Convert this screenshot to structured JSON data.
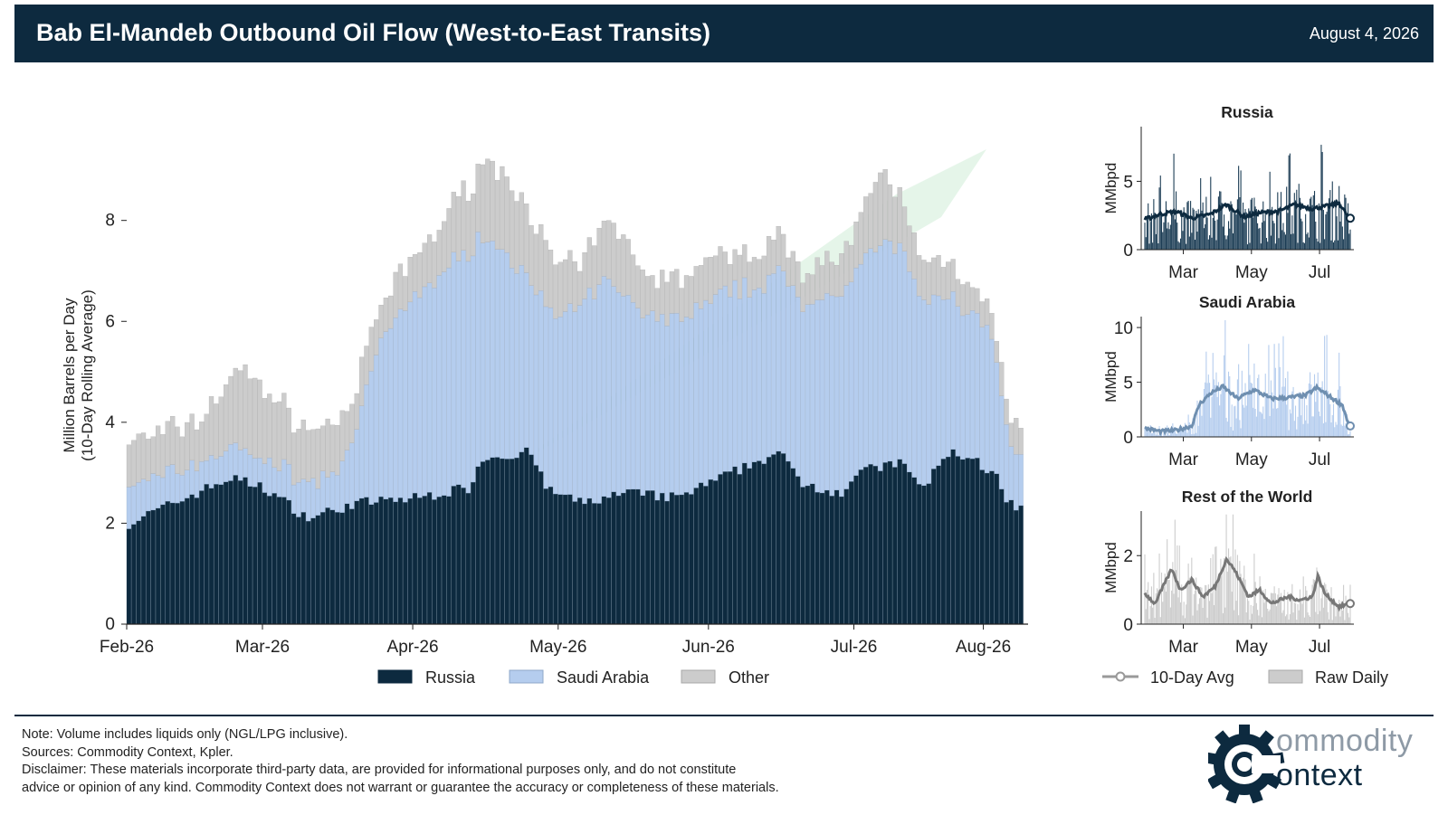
{
  "header": {
    "title": "Bab El-Mandeb Outbound Oil Flow (West-to-East Transits)",
    "date": "August 4, 2026"
  },
  "colors": {
    "russia": "#0d2a3f",
    "saudi": "#b5cdee",
    "other": "#cccccc",
    "header_bg": "#0d2a3f"
  },
  "chart_data": [
    {
      "type": "bar",
      "stacked": true,
      "title": "",
      "ylabel": "Million Barrels per Day\n(10-Day Rolling Average)",
      "xlabel": "",
      "ylim": [
        0,
        9.5
      ],
      "yticks": [
        0,
        2,
        4,
        6,
        8
      ],
      "xtick_labels": [
        "Feb-26",
        "Mar-26",
        "Apr-26",
        "May-26",
        "Jun-26",
        "Jul-26",
        "Aug-26"
      ],
      "legend": {
        "placement": "bottom-center",
        "entries": [
          "Russia",
          "Saudi Arabia",
          "Other"
        ]
      },
      "x_start": "2026-02-01",
      "x_end": "2026-08-04",
      "series_keypoints": {
        "Russia": [
          [
            "2026-02-01",
            2.0
          ],
          [
            "2026-02-15",
            2.6
          ],
          [
            "2026-02-22",
            2.9
          ],
          [
            "2026-03-01",
            2.7
          ],
          [
            "2026-03-10",
            2.1
          ],
          [
            "2026-03-20",
            2.4
          ],
          [
            "2026-04-01",
            2.5
          ],
          [
            "2026-04-12",
            2.7
          ],
          [
            "2026-04-15",
            3.3
          ],
          [
            "2026-04-25",
            3.4
          ],
          [
            "2026-04-28",
            2.7
          ],
          [
            "2026-05-05",
            2.4
          ],
          [
            "2026-05-15",
            2.6
          ],
          [
            "2026-05-25",
            2.5
          ],
          [
            "2026-06-01",
            2.8
          ],
          [
            "2026-06-10",
            3.2
          ],
          [
            "2026-06-15",
            3.4
          ],
          [
            "2026-06-20",
            2.8
          ],
          [
            "2026-06-28",
            2.6
          ],
          [
            "2026-07-01",
            3.0
          ],
          [
            "2026-07-10",
            3.2
          ],
          [
            "2026-07-15",
            2.7
          ],
          [
            "2026-07-20",
            3.4
          ],
          [
            "2026-07-25",
            3.3
          ],
          [
            "2026-07-30",
            2.9
          ],
          [
            "2026-08-01",
            2.4
          ],
          [
            "2026-08-03",
            2.3
          ]
        ],
        "Saudi Arabia": [
          [
            "2026-02-01",
            0.7
          ],
          [
            "2026-02-15",
            0.6
          ],
          [
            "2026-03-01",
            0.6
          ],
          [
            "2026-03-15",
            0.7
          ],
          [
            "2026-03-20",
            1.3
          ],
          [
            "2026-03-24",
            3.0
          ],
          [
            "2026-04-01",
            4.0
          ],
          [
            "2026-04-12",
            4.7
          ],
          [
            "2026-04-25",
            3.5
          ],
          [
            "2026-05-01",
            3.5
          ],
          [
            "2026-05-10",
            4.3
          ],
          [
            "2026-05-20",
            3.5
          ],
          [
            "2026-06-01",
            3.6
          ],
          [
            "2026-06-12",
            3.5
          ],
          [
            "2026-06-20",
            3.6
          ],
          [
            "2026-07-01",
            4.0
          ],
          [
            "2026-07-08",
            4.5
          ],
          [
            "2026-07-15",
            3.6
          ],
          [
            "2026-07-22",
            3.0
          ],
          [
            "2026-07-28",
            2.9
          ],
          [
            "2026-08-01",
            1.4
          ],
          [
            "2026-08-03",
            1.0
          ]
        ],
        "Other": [
          [
            "2026-02-01",
            0.9
          ],
          [
            "2026-02-15",
            0.8
          ],
          [
            "2026-02-25",
            1.6
          ],
          [
            "2026-03-05",
            1.2
          ],
          [
            "2026-03-15",
            1.0
          ],
          [
            "2026-03-25",
            0.7
          ],
          [
            "2026-04-05",
            0.9
          ],
          [
            "2026-04-15",
            1.5
          ],
          [
            "2026-04-22",
            1.5
          ],
          [
            "2026-05-05",
            0.8
          ],
          [
            "2026-05-12",
            1.2
          ],
          [
            "2026-05-20",
            0.8
          ],
          [
            "2026-06-01",
            0.8
          ],
          [
            "2026-06-10",
            0.7
          ],
          [
            "2026-06-20",
            0.7
          ],
          [
            "2026-07-01",
            0.8
          ],
          [
            "2026-07-06",
            1.4
          ],
          [
            "2026-07-10",
            1.0
          ],
          [
            "2026-07-20",
            0.7
          ],
          [
            "2026-07-28",
            0.5
          ],
          [
            "2026-08-03",
            0.6
          ]
        ]
      }
    },
    {
      "type": "line",
      "title": "Russia",
      "ylabel": "MMbpd",
      "ylim": [
        0,
        9
      ],
      "yticks": [
        0,
        5
      ],
      "xtick_labels": [
        "Mar",
        "May",
        "Jul"
      ],
      "avg_color": "#0d2a3f",
      "raw_color": "#1c3d55",
      "avg_keypoints": [
        [
          "2026-02-01",
          2.2
        ],
        [
          "2026-02-15",
          2.6
        ],
        [
          "2026-03-01",
          2.8
        ],
        [
          "2026-03-15",
          2.3
        ],
        [
          "2026-04-01",
          2.6
        ],
        [
          "2026-04-15",
          3.3
        ],
        [
          "2026-05-01",
          2.4
        ],
        [
          "2026-05-15",
          2.7
        ],
        [
          "2026-06-01",
          2.8
        ],
        [
          "2026-06-15",
          3.3
        ],
        [
          "2026-07-01",
          3.0
        ],
        [
          "2026-07-15",
          3.2
        ],
        [
          "2026-07-25",
          3.4
        ],
        [
          "2026-08-03",
          2.3
        ]
      ]
    },
    {
      "type": "line",
      "title": "Saudi Arabia",
      "ylabel": "MMbpd",
      "ylim": [
        0,
        11
      ],
      "yticks": [
        0,
        5,
        10
      ],
      "xtick_labels": [
        "Mar",
        "May",
        "Jul"
      ],
      "avg_color": "#6f8fb0",
      "raw_color": "#b5cdee",
      "avg_keypoints": [
        [
          "2026-02-01",
          0.8
        ],
        [
          "2026-02-15",
          0.5
        ],
        [
          "2026-03-01",
          0.6
        ],
        [
          "2026-03-15",
          1.0
        ],
        [
          "2026-03-22",
          3.0
        ],
        [
          "2026-04-01",
          4.0
        ],
        [
          "2026-04-12",
          4.6
        ],
        [
          "2026-04-25",
          3.5
        ],
        [
          "2026-05-10",
          4.3
        ],
        [
          "2026-05-25",
          3.5
        ],
        [
          "2026-06-10",
          3.6
        ],
        [
          "2026-06-25",
          3.8
        ],
        [
          "2026-07-05",
          4.5
        ],
        [
          "2026-07-15",
          3.8
        ],
        [
          "2026-07-28",
          2.9
        ],
        [
          "2026-08-03",
          1.0
        ]
      ]
    },
    {
      "type": "line",
      "title": "Rest of the World",
      "ylabel": "MMbpd",
      "ylim": [
        0,
        3.3
      ],
      "yticks": [
        0,
        2
      ],
      "xtick_labels": [
        "Mar",
        "May",
        "Jul"
      ],
      "avg_color": "#777777",
      "raw_color": "#cccccc",
      "avg_keypoints": [
        [
          "2026-02-01",
          0.9
        ],
        [
          "2026-02-10",
          0.6
        ],
        [
          "2026-02-25",
          1.6
        ],
        [
          "2026-03-05",
          1.0
        ],
        [
          "2026-03-15",
          1.3
        ],
        [
          "2026-03-25",
          0.8
        ],
        [
          "2026-04-05",
          1.1
        ],
        [
          "2026-04-15",
          1.9
        ],
        [
          "2026-04-22",
          1.6
        ],
        [
          "2026-05-05",
          0.8
        ],
        [
          "2026-05-15",
          1.0
        ],
        [
          "2026-05-25",
          0.6
        ],
        [
          "2026-06-10",
          0.8
        ],
        [
          "2026-06-20",
          0.7
        ],
        [
          "2026-07-01",
          0.8
        ],
        [
          "2026-07-06",
          1.4
        ],
        [
          "2026-07-12",
          0.9
        ],
        [
          "2026-07-25",
          0.5
        ],
        [
          "2026-08-03",
          0.6
        ]
      ]
    }
  ],
  "small_legend": {
    "avg_label": "10-Day Avg",
    "raw_label": "Raw Daily"
  },
  "footer": {
    "note": "Note: Volume includes liquids only (NGL/LPG inclusive).",
    "sources": "Sources: Commodity Context, Kpler.",
    "disclaimer_1": "Disclaimer: These materials incorporate third-party data, are provided for informational purposes only, and do not constitute",
    "disclaimer_2": "advice or opinion of any kind. Commodity Context does not warrant or guarantee the accuracy or completeness of these materials."
  },
  "logo": {
    "line1": "ommodity",
    "line2": "ontext",
    "icon": "gear-c-icon"
  }
}
